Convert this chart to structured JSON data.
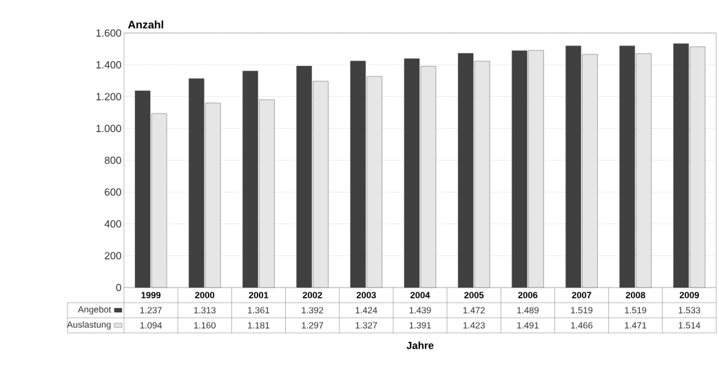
{
  "chart_data": {
    "type": "bar",
    "ylabel": "Anzahl",
    "xlabel": "Jahre",
    "categories": [
      "1999",
      "2000",
      "2001",
      "2002",
      "2003",
      "2004",
      "2005",
      "2006",
      "2007",
      "2008",
      "2009"
    ],
    "series": [
      {
        "name": "Angebot",
        "color": "#404040",
        "values": [
          1237,
          1313,
          1361,
          1392,
          1424,
          1439,
          1472,
          1489,
          1519,
          1519,
          1533
        ],
        "value_labels": [
          "1.237",
          "1.313",
          "1.361",
          "1.392",
          "1.424",
          "1.439",
          "1.472",
          "1.489",
          "1.519",
          "1.519",
          "1.533"
        ]
      },
      {
        "name": "Auslastung",
        "color": "#e6e6e6",
        "values": [
          1094,
          1160,
          1181,
          1297,
          1327,
          1391,
          1423,
          1491,
          1466,
          1471,
          1514
        ],
        "value_labels": [
          "1.094",
          "1.160",
          "1.181",
          "1.297",
          "1.327",
          "1.391",
          "1.423",
          "1.491",
          "1.466",
          "1.471",
          "1.514"
        ]
      }
    ],
    "ylim": [
      0,
      1600
    ],
    "yticks": [
      0,
      {
        "value": 200,
        "label": "200"
      },
      {
        "value": 400,
        "label": "400"
      },
      {
        "value": 600,
        "label": "600"
      },
      {
        "value": 800,
        "label": "800"
      },
      {
        "value": 1000,
        "label": "1.000"
      },
      {
        "value": 1200,
        "label": "1.200"
      },
      {
        "value": 1400,
        "label": "1.400"
      },
      {
        "value": 1600,
        "label": "1.600"
      }
    ],
    "grid": "y",
    "legend": "bottom left"
  }
}
